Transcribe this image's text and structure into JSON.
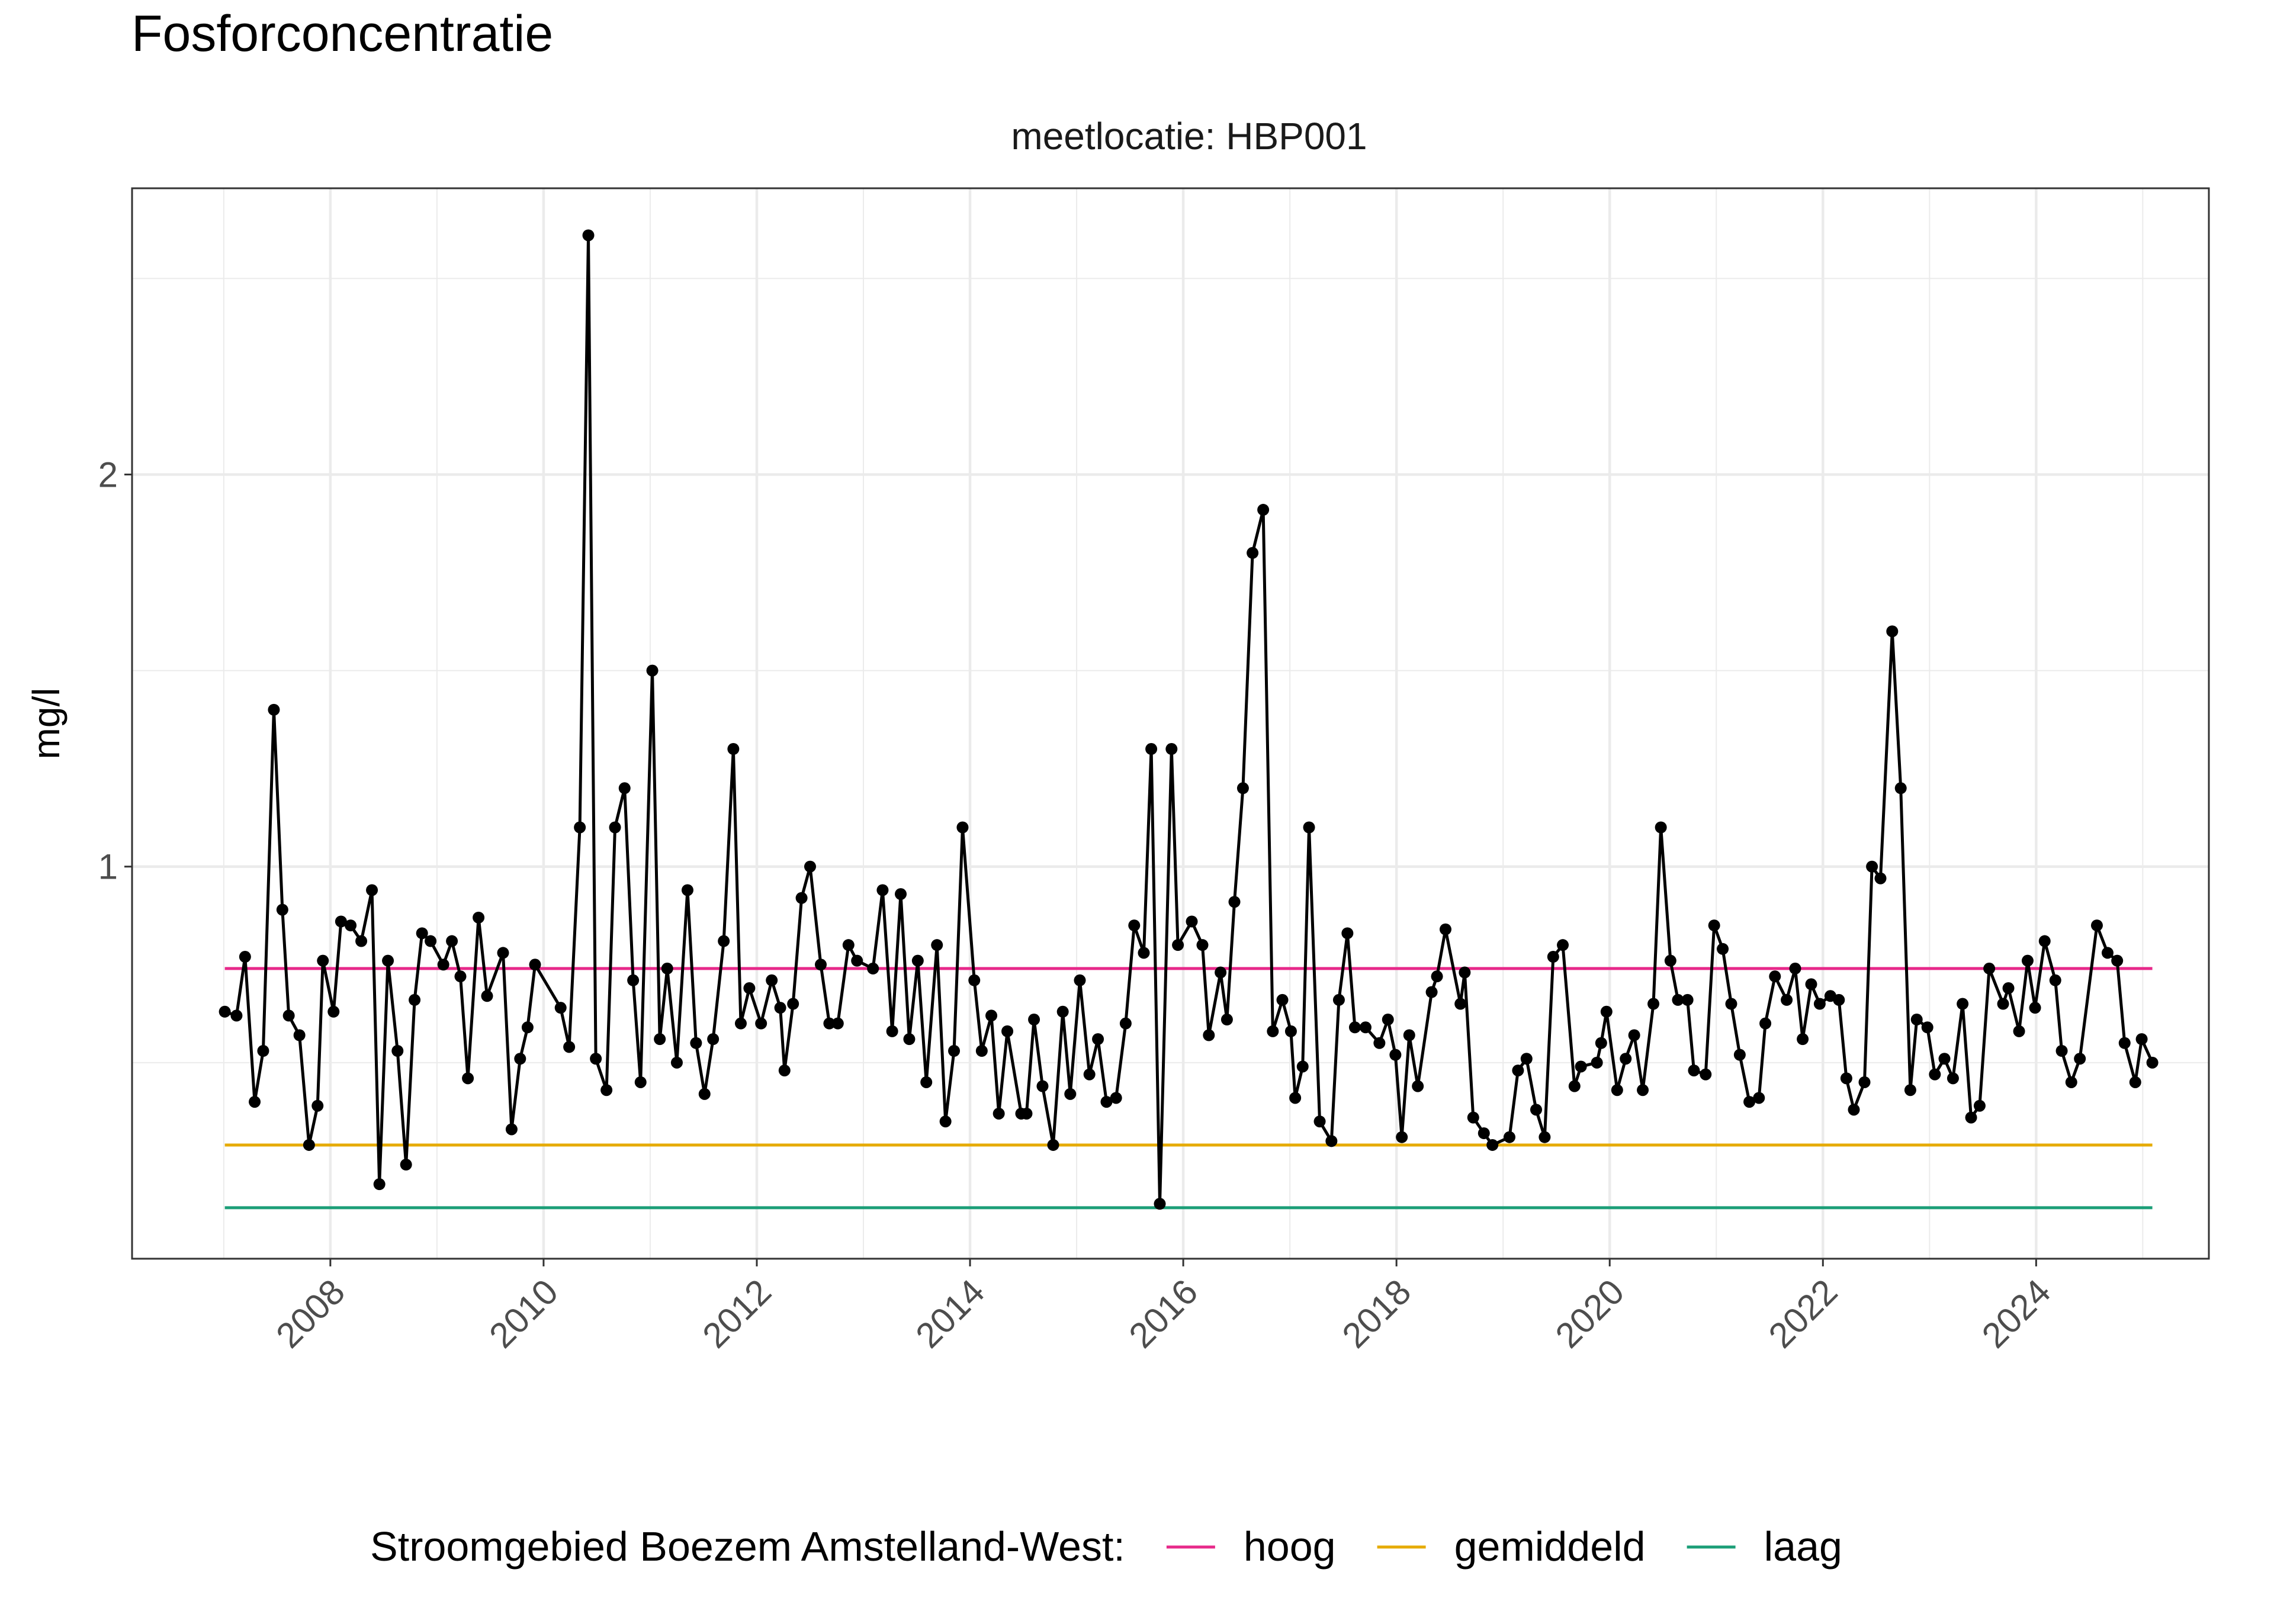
{
  "chart_data": {
    "type": "line",
    "title": "Fosforconcentratie",
    "subtitle": "meetlocatie: HBP001",
    "y_label": "mg/l",
    "color": "#000000",
    "markers": true,
    "grid": true,
    "xlim": [
      2006.14,
      2025.62
    ],
    "xticks": [
      2008,
      2010,
      2012,
      2014,
      2016,
      2018,
      2020,
      2022,
      2024
    ],
    "x_minor_ticks": [
      2007,
      2009,
      2011,
      2013,
      2015,
      2017,
      2019,
      2021,
      2023,
      2025
    ],
    "ylim": [
      0,
      2.73
    ],
    "yticks": [
      1,
      2
    ],
    "y_minor_ticks": [
      0.5,
      1.5,
      2.5
    ],
    "x": [
      2007.01,
      2007.12,
      2007.2,
      2007.29,
      2007.37,
      2007.47,
      2007.55,
      2007.61,
      2007.71,
      2007.8,
      2007.88,
      2007.93,
      2008.03,
      2008.1,
      2008.19,
      2008.29,
      2008.39,
      2008.46,
      2008.54,
      2008.63,
      2008.71,
      2008.79,
      2008.86,
      2008.94,
      2009.06,
      2009.14,
      2009.22,
      2009.29,
      2009.39,
      2009.47,
      2009.62,
      2009.7,
      2009.78,
      2009.85,
      2009.92,
      2010.16,
      2010.24,
      2010.34,
      2010.42,
      2010.49,
      2010.59,
      2010.67,
      2010.76,
      2010.84,
      2010.91,
      2011.02,
      2011.09,
      2011.16,
      2011.25,
      2011.35,
      2011.43,
      2011.51,
      2011.59,
      2011.69,
      2011.78,
      2011.85,
      2011.93,
      2012.04,
      2012.14,
      2012.22,
      2012.26,
      2012.34,
      2012.42,
      2012.5,
      2012.6,
      2012.68,
      2012.76,
      2012.86,
      2012.94,
      2013.09,
      2013.18,
      2013.27,
      2013.35,
      2013.43,
      2013.51,
      2013.59,
      2013.69,
      2013.77,
      2013.85,
      2013.93,
      2014.04,
      2014.11,
      2014.2,
      2014.27,
      2014.35,
      2014.48,
      2014.53,
      2014.6,
      2014.68,
      2014.78,
      2014.87,
      2014.94,
      2015.03,
      2015.12,
      2015.2,
      2015.28,
      2015.37,
      2015.46,
      2015.54,
      2015.63,
      2015.7,
      2015.78,
      2015.89,
      2015.95,
      2016.08,
      2016.18,
      2016.24,
      2016.35,
      2016.41,
      2016.48,
      2016.56,
      2016.65,
      2016.75,
      2016.84,
      2016.93,
      2017.01,
      2017.05,
      2017.12,
      2017.18,
      2017.28,
      2017.39,
      2017.46,
      2017.54,
      2017.61,
      2017.71,
      2017.84,
      2017.92,
      2017.99,
      2018.05,
      2018.12,
      2018.2,
      2018.33,
      2018.38,
      2018.46,
      2018.6,
      2018.64,
      2018.72,
      2018.82,
      2018.9,
      2019.06,
      2019.14,
      2019.22,
      2019.31,
      2019.39,
      2019.47,
      2019.56,
      2019.67,
      2019.73,
      2019.88,
      2019.92,
      2019.97,
      2020.07,
      2020.15,
      2020.23,
      2020.31,
      2020.41,
      2020.48,
      2020.57,
      2020.64,
      2020.73,
      2020.79,
      2020.9,
      2020.98,
      2021.06,
      2021.14,
      2021.22,
      2021.31,
      2021.4,
      2021.46,
      2021.55,
      2021.66,
      2021.74,
      2021.81,
      2021.89,
      2021.97,
      2022.07,
      2022.15,
      2022.22,
      2022.29,
      2022.39,
      2022.46,
      2022.54,
      2022.65,
      2022.73,
      2022.82,
      2022.88,
      2022.98,
      2023.05,
      2023.14,
      2023.22,
      2023.31,
      2023.39,
      2023.47,
      2023.56,
      2023.69,
      2023.74,
      2023.84,
      2023.92,
      2023.99,
      2024.08,
      2024.18,
      2024.24,
      2024.33,
      2024.41,
      2024.57,
      2024.67,
      2024.76,
      2024.83,
      2024.93,
      2024.99,
      2025.09
    ],
    "values": [
      0.63,
      0.62,
      0.77,
      0.4,
      0.53,
      1.4,
      0.89,
      0.62,
      0.57,
      0.29,
      0.39,
      0.76,
      0.63,
      0.86,
      0.85,
      0.81,
      0.94,
      0.19,
      0.76,
      0.53,
      0.24,
      0.66,
      0.83,
      0.81,
      0.75,
      0.81,
      0.72,
      0.46,
      0.87,
      0.67,
      0.78,
      0.33,
      0.51,
      0.59,
      0.75,
      0.64,
      0.54,
      1.1,
      2.61,
      0.51,
      0.43,
      1.1,
      1.2,
      0.71,
      0.45,
      1.5,
      0.56,
      0.74,
      0.5,
      0.94,
      0.55,
      0.42,
      0.56,
      0.81,
      1.3,
      0.6,
      0.69,
      0.6,
      0.71,
      0.64,
      0.48,
      0.65,
      0.92,
      1.0,
      0.75,
      0.6,
      0.6,
      0.8,
      0.76,
      0.74,
      0.94,
      0.58,
      0.93,
      0.56,
      0.76,
      0.45,
      0.8,
      0.35,
      0.53,
      1.1,
      0.71,
      0.53,
      0.62,
      0.37,
      0.58,
      0.37,
      0.37,
      0.61,
      0.44,
      0.29,
      0.63,
      0.42,
      0.71,
      0.47,
      0.56,
      0.4,
      0.41,
      0.6,
      0.85,
      0.78,
      1.3,
      0.14,
      1.3,
      0.8,
      0.86,
      0.8,
      0.57,
      0.73,
      0.61,
      0.91,
      1.2,
      1.8,
      1.91,
      0.58,
      0.66,
      0.58,
      0.41,
      0.49,
      1.1,
      0.35,
      0.3,
      0.66,
      0.83,
      0.59,
      0.59,
      0.55,
      0.61,
      0.52,
      0.31,
      0.57,
      0.44,
      0.68,
      0.72,
      0.84,
      0.65,
      0.73,
      0.36,
      0.32,
      0.29,
      0.31,
      0.48,
      0.51,
      0.38,
      0.31,
      0.77,
      0.8,
      0.44,
      0.49,
      0.5,
      0.55,
      0.63,
      0.43,
      0.51,
      0.57,
      0.43,
      0.65,
      1.1,
      0.76,
      0.66,
      0.66,
      0.48,
      0.47,
      0.85,
      0.79,
      0.65,
      0.52,
      0.4,
      0.41,
      0.6,
      0.72,
      0.66,
      0.74,
      0.56,
      0.7,
      0.65,
      0.67,
      0.66,
      0.46,
      0.38,
      0.45,
      1.0,
      0.97,
      1.6,
      1.2,
      0.43,
      0.61,
      0.59,
      0.47,
      0.51,
      0.46,
      0.65,
      0.36,
      0.39,
      0.74,
      0.65,
      0.69,
      0.58,
      0.76,
      0.64,
      0.81,
      0.71,
      0.53,
      0.45,
      0.51,
      0.85,
      0.78,
      0.76,
      0.55,
      0.45,
      0.56,
      0.5
    ],
    "legend_title": "Stroomgebied Boezem Amstelland-West:",
    "legend_position": "bottom",
    "reference_lines": [
      {
        "name": "hoog",
        "color": "#e7298a",
        "value": 0.74
      },
      {
        "name": "gemiddeld",
        "color": "#e6ab02",
        "value": 0.29
      },
      {
        "name": "laag",
        "color": "#1b9e77",
        "value": 0.13
      }
    ]
  }
}
